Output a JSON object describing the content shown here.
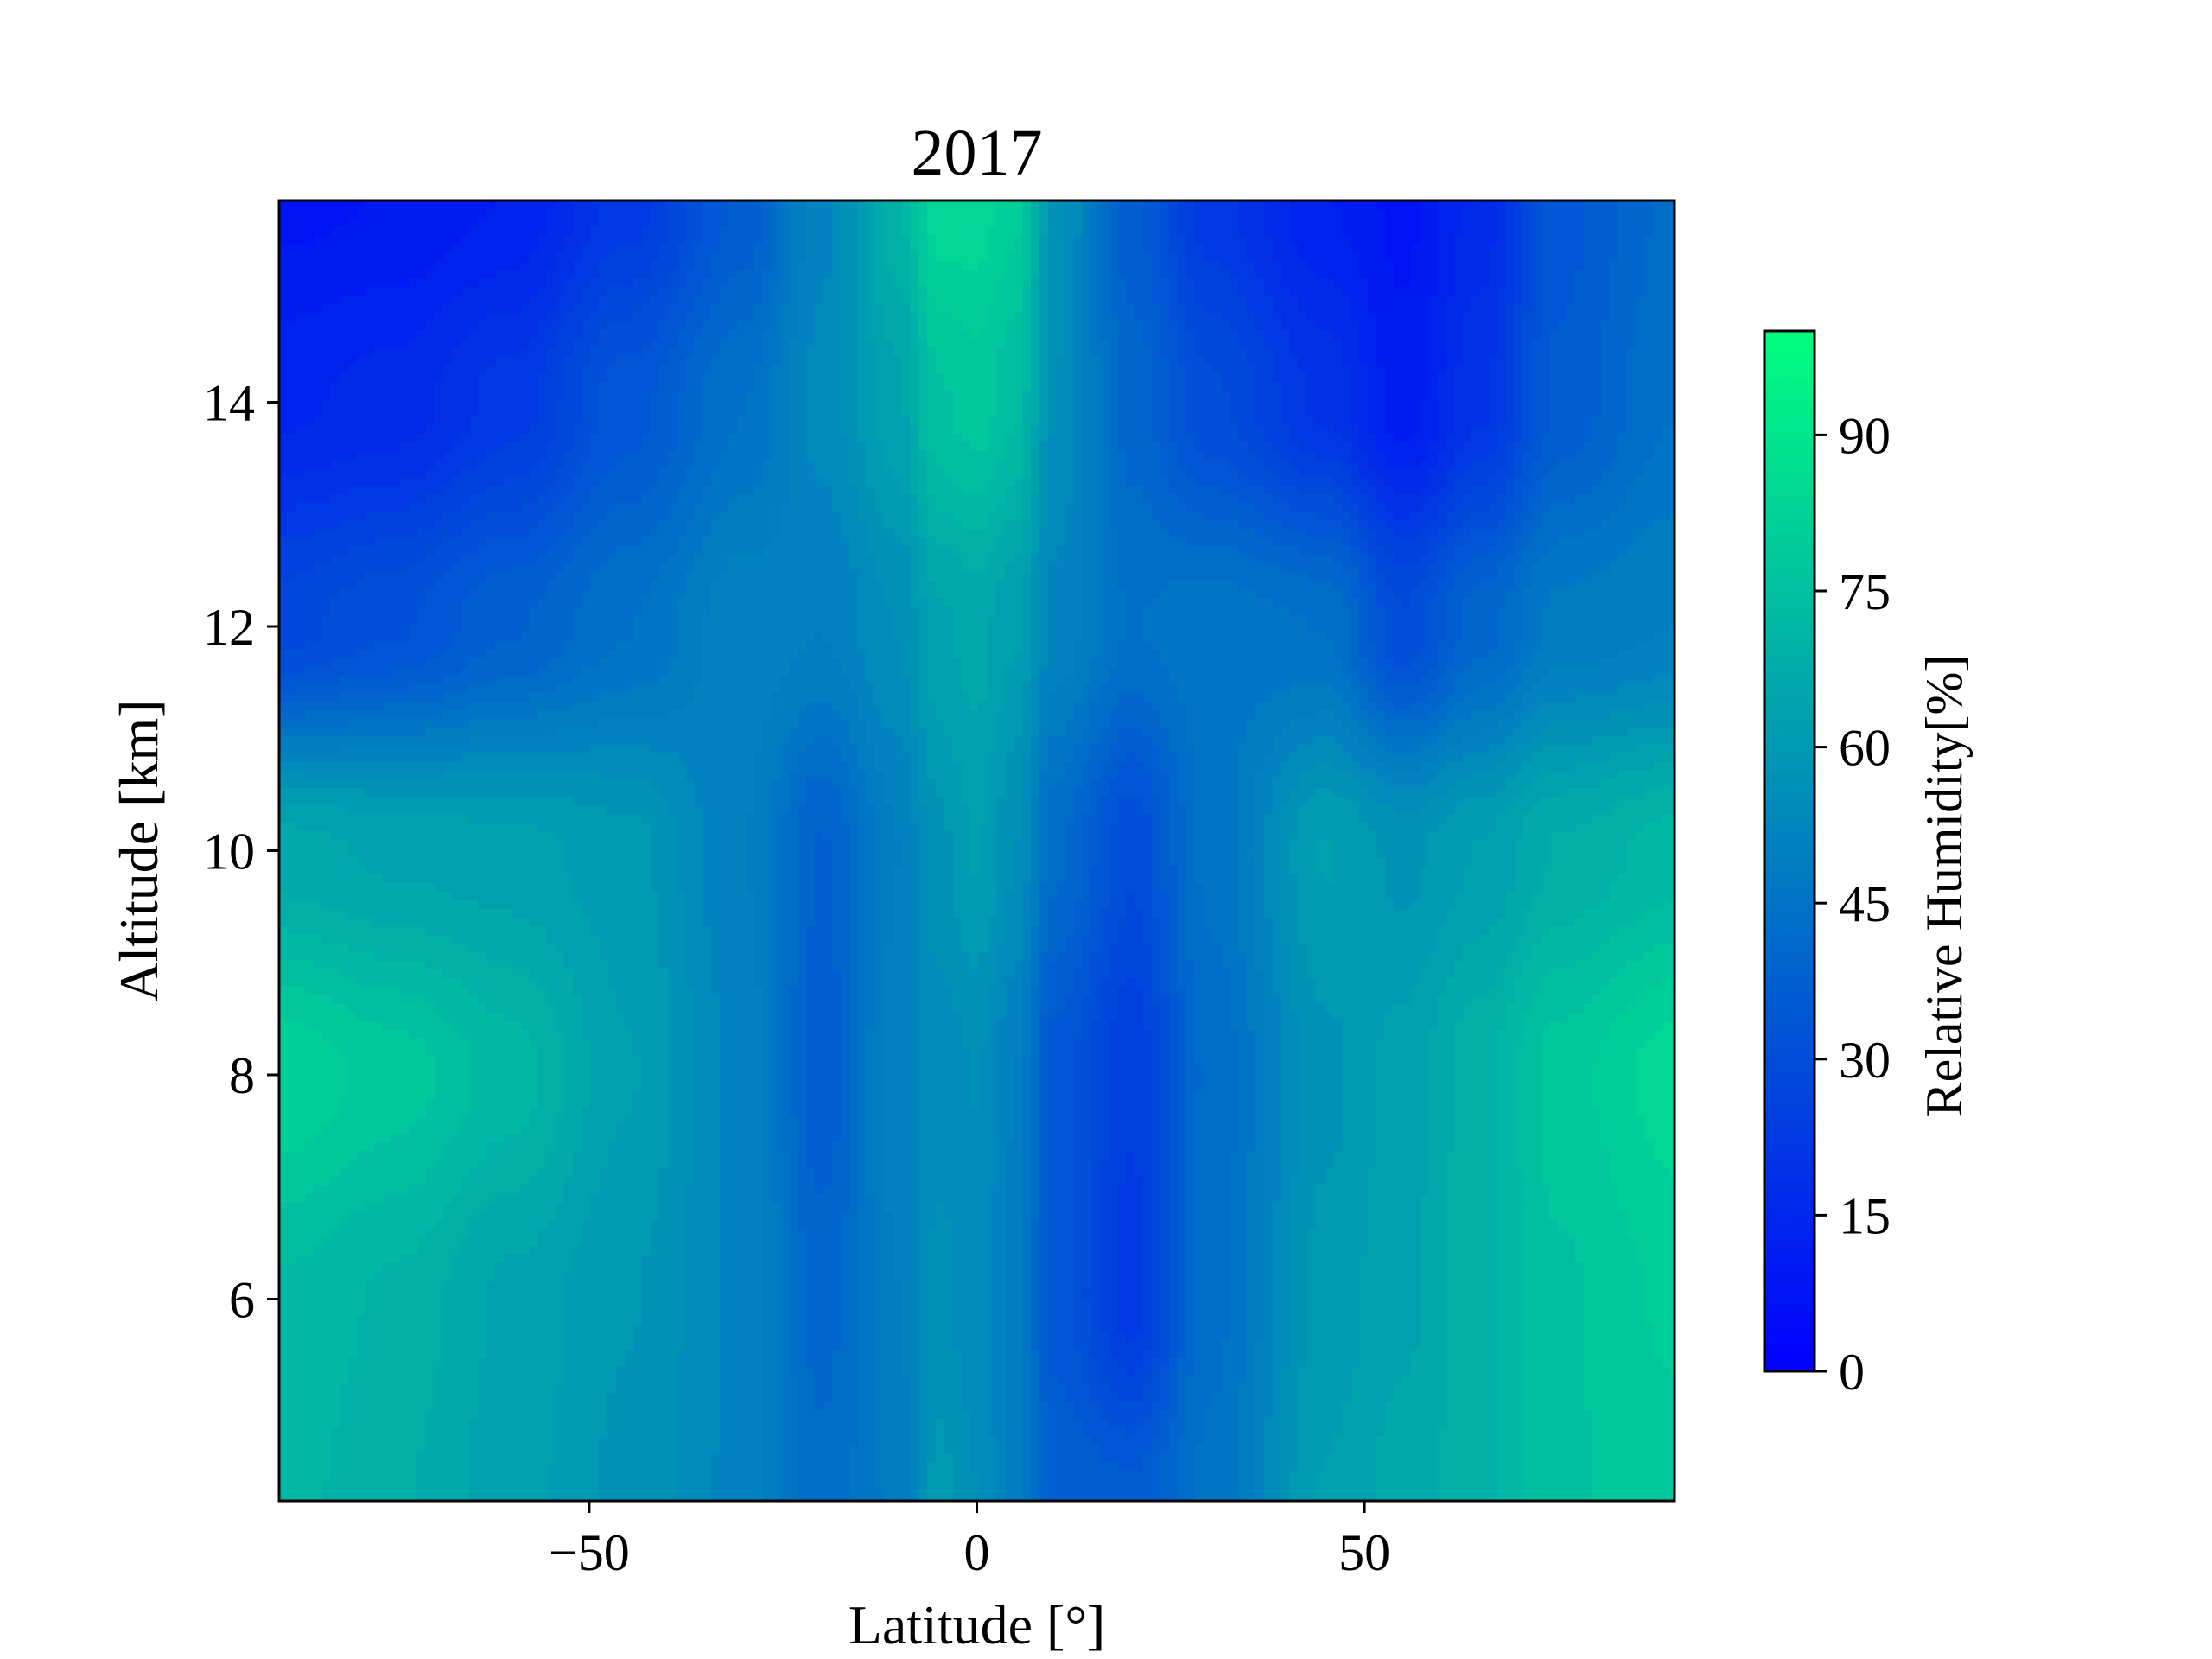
{
  "chart_data": {
    "type": "heatmap",
    "subtype": "filled-contour",
    "title": "2017",
    "xlabel": "Latitude [°]",
    "ylabel": "Altitude [km]",
    "xlim": [
      -90,
      90
    ],
    "ylim": [
      4.2,
      15.8
    ],
    "xticks": [
      -50,
      0,
      50
    ],
    "xtick_labels": [
      "−50",
      "0",
      "50"
    ],
    "yticks": [
      6,
      8,
      10,
      12,
      14
    ],
    "ytick_labels": [
      "6",
      "8",
      "10",
      "12",
      "14"
    ],
    "grid": false,
    "colormap": "winter",
    "colormap_colors": [
      "#0000ff",
      "#00ff80"
    ],
    "colorbar": {
      "label": "Relative Humidity[%]",
      "range": [
        0,
        100
      ],
      "ticks": [
        0,
        15,
        30,
        45,
        60,
        75,
        90
      ],
      "tick_labels": [
        "0",
        "15",
        "30",
        "45",
        "60",
        "75",
        "90"
      ],
      "levels": 34
    },
    "grid_x": [
      -90,
      -75,
      -60,
      -45,
      -30,
      -20,
      -10,
      -5,
      0,
      5,
      10,
      20,
      30,
      45,
      55,
      65,
      75,
      90
    ],
    "grid_y": [
      4.2,
      6,
      8,
      10,
      12,
      14,
      15.8
    ],
    "z": [
      [
        72,
        68,
        63,
        58,
        52,
        42,
        48,
        60,
        56,
        48,
        38,
        36,
        45,
        62,
        66,
        70,
        76,
        78
      ],
      [
        73,
        70,
        64,
        59,
        52,
        40,
        50,
        57,
        54,
        48,
        34,
        22,
        43,
        60,
        64,
        70,
        76,
        80
      ],
      [
        82,
        78,
        72,
        62,
        52,
        36,
        52,
        54,
        56,
        50,
        34,
        24,
        42,
        58,
        63,
        70,
        78,
        84
      ],
      [
        66,
        64,
        63,
        60,
        50,
        38,
        50,
        58,
        62,
        56,
        42,
        30,
        45,
        62,
        58,
        62,
        68,
        72
      ],
      [
        28,
        32,
        38,
        44,
        52,
        50,
        56,
        64,
        66,
        62,
        52,
        44,
        46,
        44,
        30,
        40,
        48,
        50
      ],
      [
        14,
        16,
        22,
        34,
        44,
        54,
        64,
        76,
        78,
        74,
        56,
        40,
        30,
        20,
        10,
        20,
        36,
        44
      ],
      [
        8,
        9,
        12,
        22,
        36,
        52,
        70,
        84,
        84,
        80,
        58,
        36,
        22,
        12,
        8,
        16,
        34,
        42
      ]
    ]
  }
}
